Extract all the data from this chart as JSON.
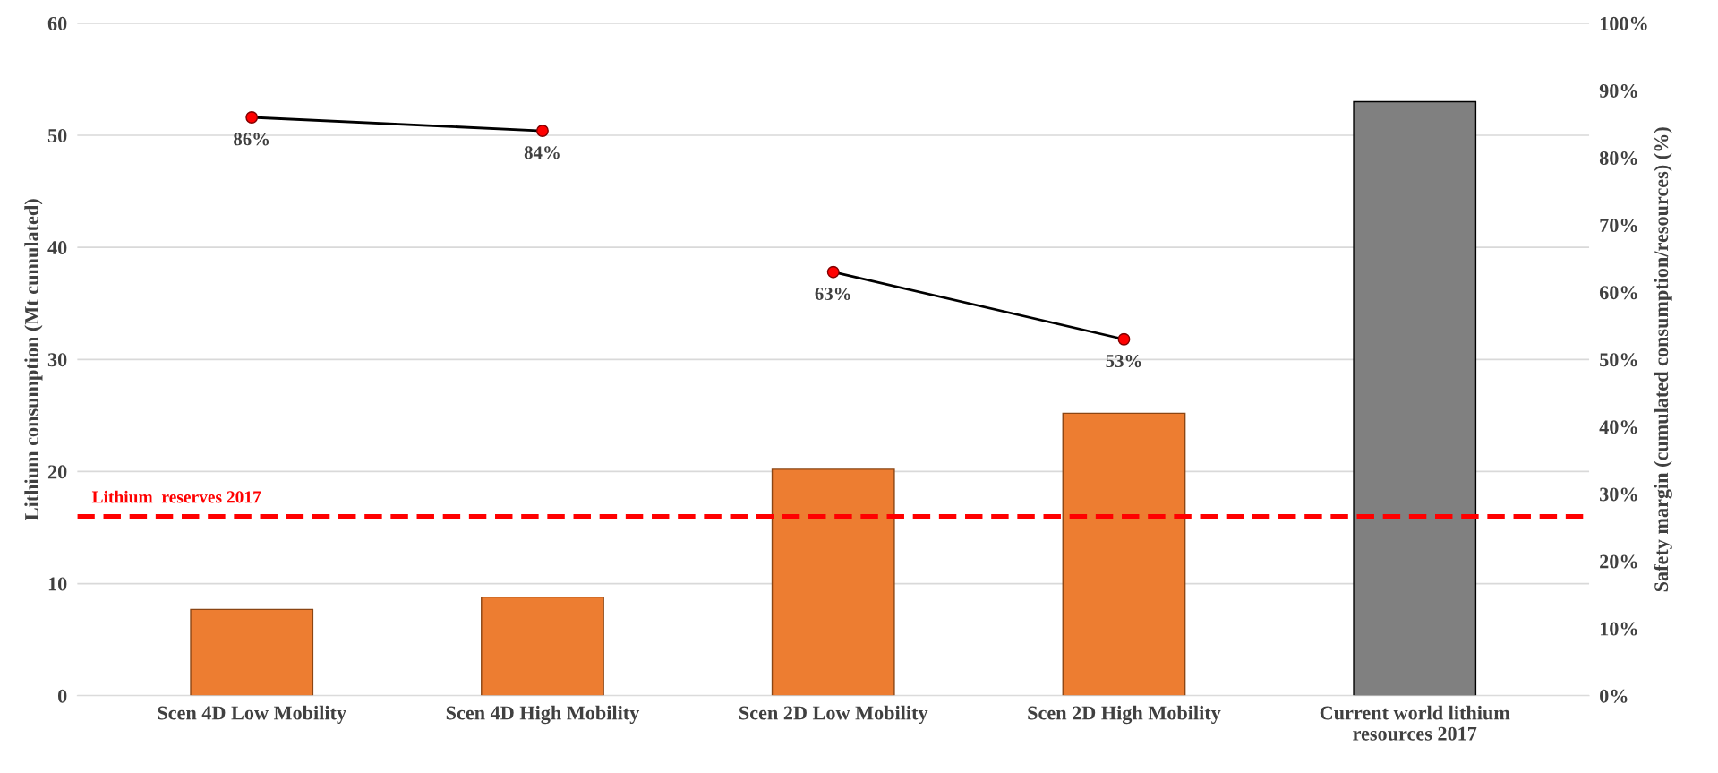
{
  "chart_data": {
    "type": "bar",
    "categories": [
      "Scen 4D Low Mobility",
      "Scen 4D High Mobility",
      "Scen 2D Low Mobility",
      "Scen 2D High Mobility",
      "Current world lithium\nresources 2017"
    ],
    "ylabel": "Lithium consumption (Mt cumulated)",
    "y2label": "Safety margin (cumulated consumption/resources) (%)",
    "series": [
      {
        "colors": [
          "#ed7d31",
          "#ed7d31",
          "#ed7d31",
          "#ed7d31",
          "#808080"
        ],
        "values": [
          7.7,
          8.8,
          20.2,
          25.2,
          53
        ]
      },
      {
        "type": "line",
        "axis": "y2",
        "color": "#000000",
        "colors": [
          "#ff0000",
          "#ff0000",
          null,
          null,
          null
        ],
        "marker": "circle",
        "values": [
          86,
          84,
          null,
          null,
          null
        ],
        "value_labels": [
          "86%",
          "84%",
          null,
          null,
          null
        ]
      },
      {
        "type": "line",
        "axis": "y2",
        "color": "#000000",
        "colors": [
          null,
          null,
          "#ff0000",
          "#ff0000",
          null
        ],
        "marker": "circle",
        "values": [
          null,
          null,
          63,
          53,
          null
        ],
        "value_labels": [
          null,
          null,
          "63%",
          "53%",
          null
        ]
      }
    ],
    "ylim": [
      0,
      60
    ],
    "yticks": [
      0,
      10,
      20,
      30,
      40,
      50,
      60
    ],
    "y2lim": [
      0,
      100
    ],
    "y2ticks": [
      {
        "value": 0,
        "label": "0%"
      },
      {
        "value": 10,
        "label": "10%"
      },
      {
        "value": 20,
        "label": "20%"
      },
      {
        "value": 30,
        "label": "30%"
      },
      {
        "value": 40,
        "label": "40%"
      },
      {
        "value": 50,
        "label": "50%"
      },
      {
        "value": 60,
        "label": "60%"
      },
      {
        "value": 70,
        "label": "70%"
      },
      {
        "value": 80,
        "label": "80%"
      },
      {
        "value": 90,
        "label": "90%"
      },
      {
        "value": 100,
        "label": "100%"
      }
    ],
    "ref_lines": [
      {
        "axis": "y",
        "value": 16,
        "label": "Lithium  reserves 2017",
        "color": "#ff0000",
        "line_style": "dashed"
      }
    ],
    "grid": "y",
    "legend": false
  }
}
